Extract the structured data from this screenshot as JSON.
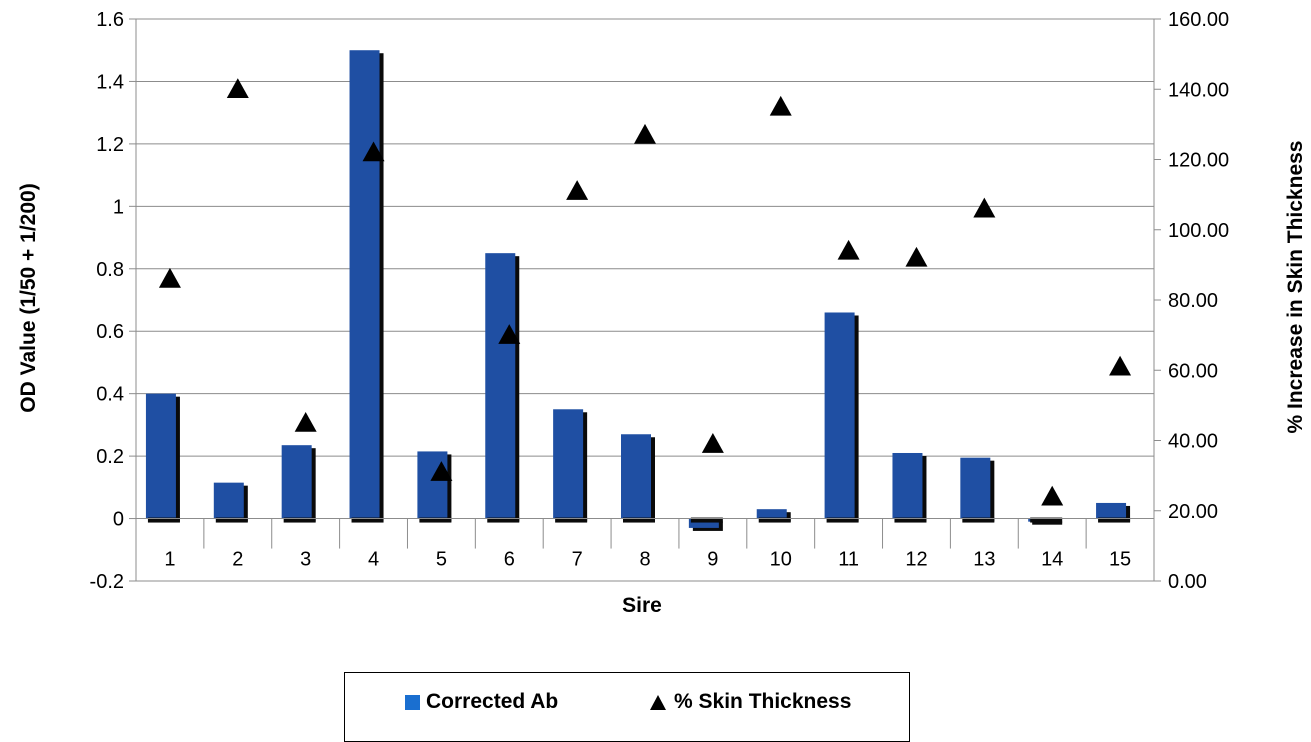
{
  "chart_data": {
    "type": "bar",
    "title": "",
    "xlabel": "Sire",
    "ylabel": "OD Value (1/50 + 1/200)",
    "y2label": "% Increase in Skin Thickness",
    "categories": [
      "1",
      "2",
      "3",
      "4",
      "5",
      "6",
      "7",
      "8",
      "9",
      "10",
      "11",
      "12",
      "13",
      "14",
      "15"
    ],
    "ylim": [
      -0.2,
      1.6
    ],
    "yticks": [
      "-0.2",
      "0",
      "0.2",
      "0.4",
      "0.6",
      "0.8",
      "1",
      "1.2",
      "1.4",
      "1.6"
    ],
    "y2lim": [
      0,
      160
    ],
    "y2ticks": [
      "0.00",
      "20.00",
      "40.00",
      "60.00",
      "80.00",
      "100.00",
      "120.00",
      "140.00",
      "160.00"
    ],
    "grid": true,
    "legend_position": "bottom",
    "series": [
      {
        "name": "Corrected Ab",
        "type": "bar",
        "axis": "left",
        "color": "#1f4fa3",
        "values": [
          0.4,
          0.115,
          0.235,
          1.5,
          0.215,
          0.85,
          0.35,
          0.27,
          -0.03,
          0.03,
          0.66,
          0.21,
          0.195,
          -0.01,
          0.05
        ]
      },
      {
        "name": "% Skin Thickness",
        "type": "scatter",
        "axis": "right",
        "marker": "triangle",
        "color": "#000000",
        "values": [
          86,
          140,
          45,
          122,
          31,
          70,
          111,
          127,
          39,
          135,
          94,
          92,
          106,
          24,
          61
        ]
      }
    ]
  }
}
